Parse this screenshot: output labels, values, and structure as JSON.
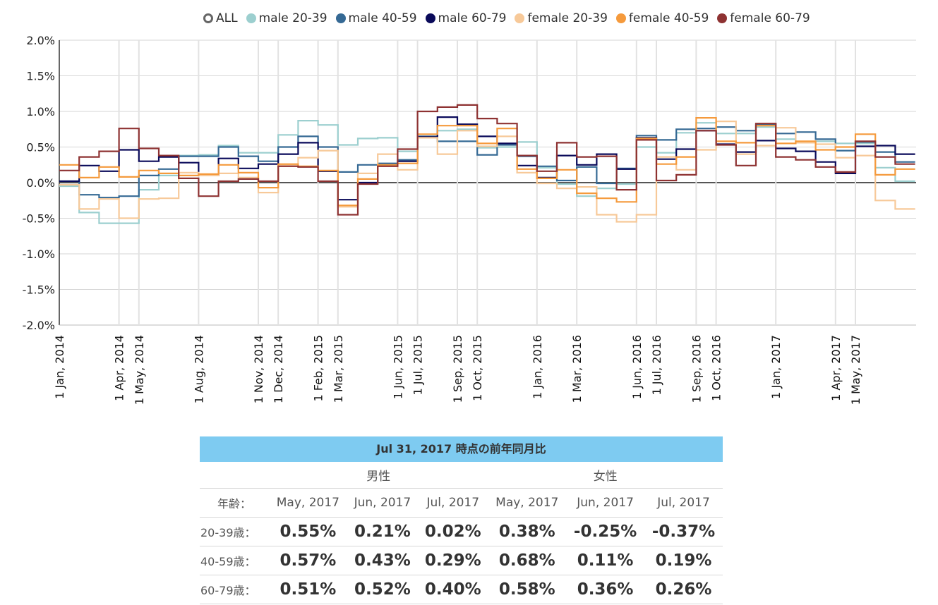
{
  "legend": [
    {
      "label": "ALL",
      "color": "#666666",
      "hollow": true
    },
    {
      "label": "male 20-39",
      "color": "#9ccfcf"
    },
    {
      "label": "male 40-59",
      "color": "#356994"
    },
    {
      "label": "male 60-79",
      "color": "#0a0a5a"
    },
    {
      "label": "female 20-39",
      "color": "#f7c999"
    },
    {
      "label": "female 40-59",
      "color": "#f59a3c"
    },
    {
      "label": "female 60-79",
      "color": "#8e3232"
    }
  ],
  "chart_data": {
    "type": "line",
    "step": true,
    "x_months": [
      "Jan 2014",
      "Feb 2014",
      "Mar 2014",
      "Apr 2014",
      "May 2014",
      "Jun 2014",
      "Jul 2014",
      "Aug 2014",
      "Sep 2014",
      "Oct 2014",
      "Nov 2014",
      "Dec 2014",
      "Jan 2015",
      "Feb 2015",
      "Mar 2015",
      "Apr 2015",
      "May 2015",
      "Jun 2015",
      "Jul 2015",
      "Aug 2015",
      "Sep 2015",
      "Oct 2015",
      "Nov 2015",
      "Dec 2015",
      "Jan 2016",
      "Feb 2016",
      "Mar 2016",
      "Apr 2016",
      "May 2016",
      "Jun 2016",
      "Jul 2016",
      "Aug 2016",
      "Sep 2016",
      "Oct 2016",
      "Nov 2016",
      "Dec 2016",
      "Jan 2017",
      "Feb 2017",
      "Mar 2017",
      "Apr 2017",
      "May 2017",
      "Jun 2017",
      "Jul 2017"
    ],
    "tick_labels": [
      "1 Jan, 2014",
      "1 Apr, 2014",
      "1 May, 2014",
      "1 Aug, 2014",
      "1 Nov, 2014",
      "1 Dec, 2014",
      "1 Feb, 2015",
      "1 Mar, 2015",
      "1 Jun, 2015",
      "1 Jul, 2015",
      "1 Sep, 2015",
      "1 Oct, 2015",
      "1 Jan, 2016",
      "1 Mar, 2016",
      "1 Jun, 2016",
      "1 Jul, 2016",
      "1 Sep, 2016",
      "1 Oct, 2016",
      "1 Jan, 2017",
      "1 Apr, 2017",
      "1 May, 2017"
    ],
    "tick_month_index": [
      0,
      3,
      4,
      7,
      10,
      11,
      13,
      14,
      17,
      18,
      20,
      21,
      24,
      26,
      29,
      30,
      32,
      33,
      36,
      39,
      40
    ],
    "y_ticks": [
      "2.0%",
      "1.5%",
      "1.0%",
      "0.5%",
      "0.0%",
      "-0.5%",
      "-1.0%",
      "-1.5%",
      "-2.0%"
    ],
    "ylim": [
      -2.0,
      2.0
    ],
    "unit": "%",
    "series": [
      {
        "name": "male 20-39",
        "color": "#9ccfcf",
        "values": [
          -0.05,
          -0.42,
          -0.57,
          -0.57,
          -0.1,
          0.1,
          0.38,
          0.39,
          0.52,
          0.42,
          0.42,
          0.67,
          0.87,
          0.81,
          0.53,
          0.62,
          0.63,
          0.44,
          0.63,
          0.73,
          0.75,
          0.49,
          0.5,
          0.57,
          0.21,
          -0.02,
          -0.19,
          -0.08,
          -0.02,
          0.5,
          0.42,
          0.7,
          0.84,
          0.69,
          0.69,
          0.78,
          0.61,
          0.57,
          0.58,
          0.55,
          0.55,
          0.21,
          0.02
        ]
      },
      {
        "name": "male 40-59",
        "color": "#356994",
        "values": [
          0.02,
          -0.17,
          -0.21,
          -0.19,
          0.1,
          0.19,
          0.37,
          0.37,
          0.5,
          0.37,
          0.3,
          0.5,
          0.65,
          0.5,
          0.15,
          0.25,
          0.27,
          0.32,
          0.65,
          0.58,
          0.58,
          0.39,
          0.53,
          0.37,
          0.23,
          0.03,
          0.22,
          -0.01,
          0.2,
          0.66,
          0.6,
          0.75,
          0.76,
          0.78,
          0.73,
          0.82,
          0.69,
          0.71,
          0.61,
          0.45,
          0.57,
          0.43,
          0.29
        ]
      },
      {
        "name": "male 60-79",
        "color": "#0a0a5a",
        "values": [
          0.02,
          0.24,
          0.16,
          0.46,
          0.3,
          0.36,
          0.28,
          0.1,
          0.34,
          0.2,
          0.26,
          0.4,
          0.56,
          0.16,
          -0.24,
          0.0,
          0.25,
          0.3,
          0.64,
          0.92,
          0.82,
          0.65,
          0.55,
          0.24,
          0.07,
          0.38,
          0.25,
          0.4,
          0.19,
          0.63,
          0.33,
          0.47,
          0.73,
          0.54,
          0.43,
          0.59,
          0.48,
          0.44,
          0.29,
          0.13,
          0.51,
          0.52,
          0.4
        ]
      },
      {
        "name": "female 20-39",
        "color": "#f7c999",
        "values": [
          -0.03,
          -0.37,
          -0.23,
          -0.5,
          -0.23,
          -0.22,
          0.14,
          0.1,
          0.13,
          0.07,
          -0.14,
          0.25,
          0.35,
          0.45,
          -0.34,
          0.13,
          0.4,
          0.18,
          0.63,
          0.4,
          0.73,
          0.51,
          0.65,
          0.14,
          -0.01,
          -0.08,
          -0.06,
          -0.45,
          -0.55,
          -0.45,
          0.36,
          0.18,
          0.46,
          0.86,
          0.4,
          0.52,
          0.77,
          0.56,
          0.54,
          0.35,
          0.38,
          -0.25,
          -0.37
        ]
      },
      {
        "name": "female 40-59",
        "color": "#f59a3c",
        "values": [
          0.25,
          0.07,
          0.22,
          0.08,
          0.17,
          0.13,
          0.1,
          0.12,
          0.25,
          0.14,
          -0.07,
          0.26,
          0.23,
          0.17,
          -0.32,
          0.05,
          0.25,
          0.27,
          0.68,
          0.8,
          0.8,
          0.55,
          0.76,
          0.19,
          0.06,
          0.18,
          -0.15,
          -0.22,
          -0.27,
          0.62,
          0.26,
          0.36,
          0.91,
          0.58,
          0.56,
          0.8,
          0.55,
          0.58,
          0.46,
          0.5,
          0.68,
          0.11,
          0.19
        ]
      },
      {
        "name": "female 60-79",
        "color": "#8e3232",
        "values": [
          0.17,
          0.36,
          0.44,
          0.76,
          0.48,
          0.38,
          0.06,
          -0.19,
          0.02,
          0.05,
          0.02,
          0.23,
          0.22,
          0.02,
          -0.45,
          -0.02,
          0.23,
          0.47,
          1.0,
          1.06,
          1.09,
          0.9,
          0.83,
          0.38,
          0.16,
          0.56,
          0.36,
          0.37,
          -0.1,
          0.6,
          0.03,
          0.11,
          0.73,
          0.53,
          0.24,
          0.83,
          0.36,
          0.32,
          0.22,
          0.15,
          0.58,
          0.36,
          0.26
        ]
      }
    ]
  },
  "table": {
    "title": "Jul 31, 2017 時点の前年同月比",
    "sex_labels": [
      "男性",
      "女性"
    ],
    "age_header": "年齢：",
    "months": [
      "May, 2017",
      "Jun, 2017",
      "Jul, 2017",
      "May, 2017",
      "Jun, 2017",
      "Jul, 2017"
    ],
    "rows": [
      {
        "age": "20-39歳：",
        "values": [
          "0.55%",
          "0.21%",
          "0.02%",
          "0.38%",
          "-0.25%",
          "-0.37%"
        ]
      },
      {
        "age": "40-59歳：",
        "values": [
          "0.57%",
          "0.43%",
          "0.29%",
          "0.68%",
          "0.11%",
          "0.19%"
        ]
      },
      {
        "age": "60-79歳：",
        "values": [
          "0.51%",
          "0.52%",
          "0.40%",
          "0.58%",
          "0.36%",
          "0.26%"
        ]
      }
    ]
  }
}
